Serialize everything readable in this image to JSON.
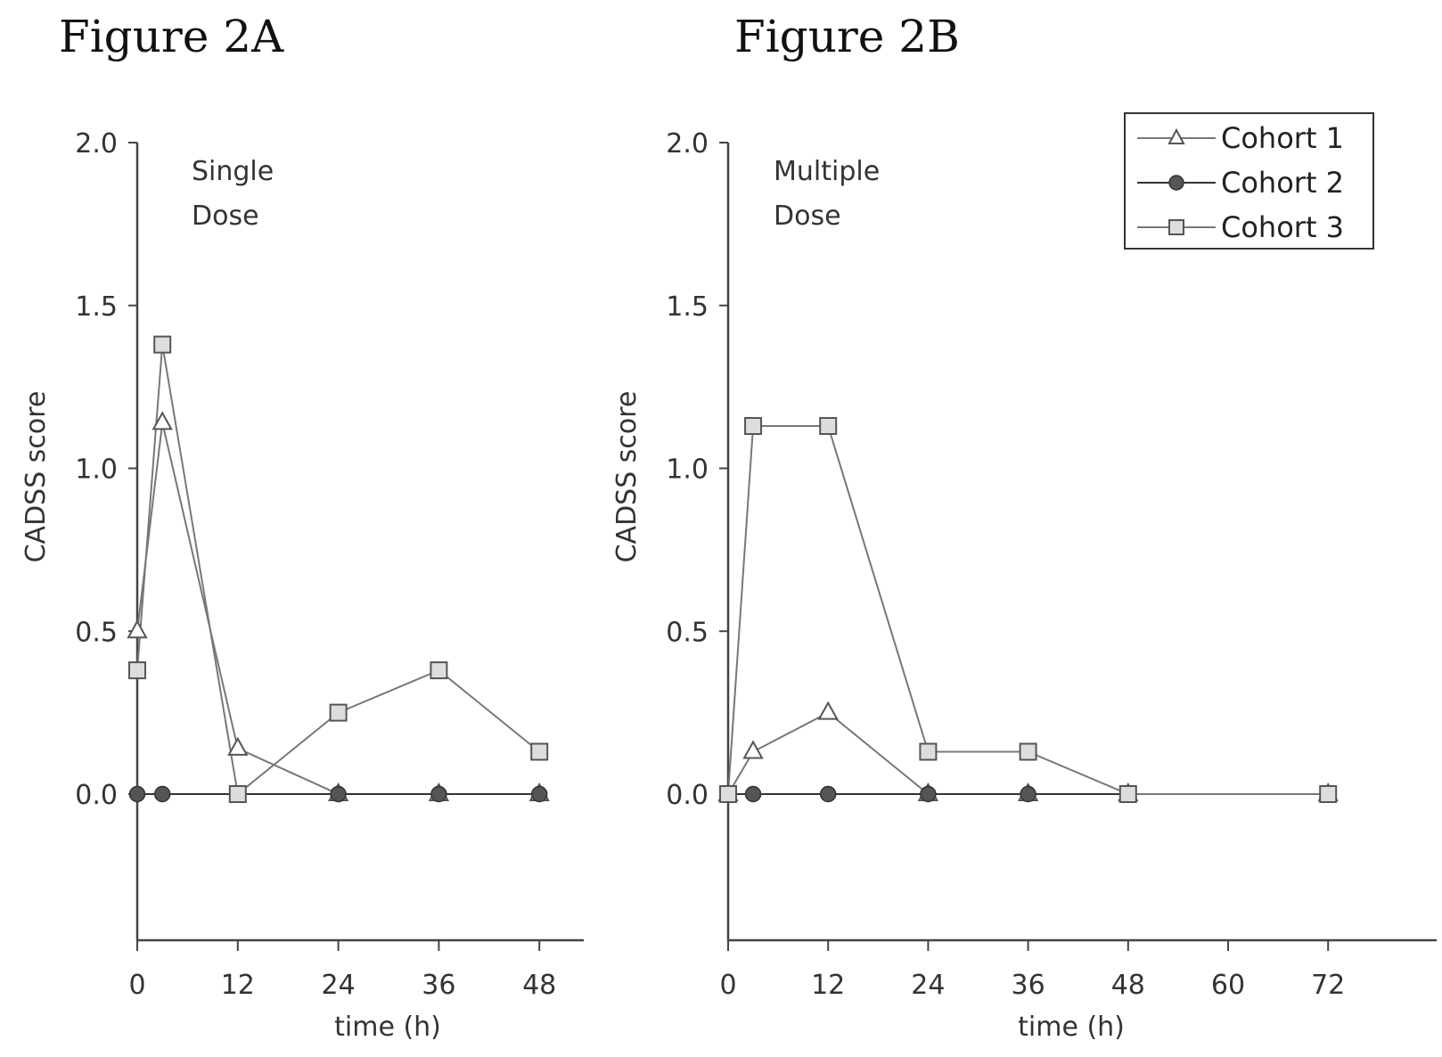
{
  "chart_data": [
    {
      "type": "line",
      "title": "Figure 2A",
      "annotation": [
        "Single",
        "Dose"
      ],
      "xlabel": "time (h)",
      "ylabel": "CADSS score",
      "xlim": [
        0,
        52
      ],
      "ylim": [
        -0.45,
        2.0
      ],
      "xticks": [
        "0",
        "12",
        "24",
        "36",
        "48"
      ],
      "yticks": [
        "0.0",
        "0.5",
        "1.0",
        "1.5",
        "2.0"
      ],
      "grid": false,
      "series": [
        {
          "name": "Cohort 1",
          "marker": "triangle",
          "x": [
            0,
            3,
            12,
            24,
            36,
            48
          ],
          "values": [
            0.5,
            1.14,
            0.14,
            0.0,
            0.0,
            0.0
          ]
        },
        {
          "name": "Cohort 2",
          "marker": "circle",
          "x": [
            0,
            3,
            12,
            24,
            36,
            48
          ],
          "values": [
            0.0,
            0.0,
            0.0,
            0.0,
            0.0,
            0.0
          ]
        },
        {
          "name": "Cohort 3",
          "marker": "square",
          "x": [
            0,
            3,
            12,
            24,
            36,
            48
          ],
          "values": [
            0.38,
            1.38,
            0.0,
            0.25,
            0.38,
            0.13
          ]
        }
      ]
    },
    {
      "type": "line",
      "title": "Figure 2B",
      "annotation": [
        "Multiple",
        "Dose"
      ],
      "xlabel": "time (h)",
      "ylabel": "CADSS score",
      "xlim": [
        0,
        82
      ],
      "ylim": [
        -0.45,
        2.0
      ],
      "xticks": [
        "0",
        "12",
        "24",
        "36",
        "48",
        "60",
        "72"
      ],
      "yticks": [
        "0.0",
        "0.5",
        "1.0",
        "1.5",
        "2.0"
      ],
      "grid": false,
      "legend_position": "top-right",
      "series": [
        {
          "name": "Cohort 1",
          "marker": "triangle",
          "x": [
            0,
            3,
            12,
            24,
            36,
            48,
            72
          ],
          "values": [
            0.0,
            0.13,
            0.25,
            0.0,
            0.0,
            0.0,
            0.0
          ]
        },
        {
          "name": "Cohort 2",
          "marker": "circle",
          "x": [
            0,
            3,
            12,
            24,
            36,
            48,
            72
          ],
          "values": [
            0.0,
            0.0,
            0.0,
            0.0,
            0.0,
            0.0,
            0.0
          ]
        },
        {
          "name": "Cohort 3",
          "marker": "square",
          "x": [
            0,
            3,
            12,
            24,
            36,
            48,
            72
          ],
          "values": [
            0.0,
            1.13,
            1.13,
            0.13,
            0.13,
            0.0,
            0.0
          ]
        }
      ]
    }
  ]
}
